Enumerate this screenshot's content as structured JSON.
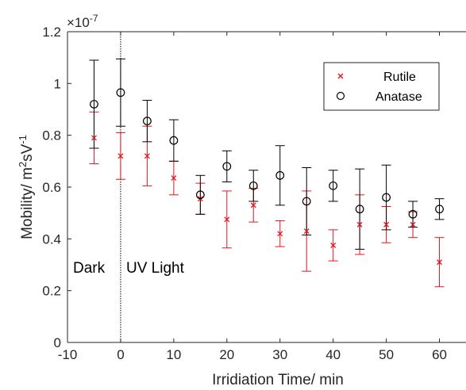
{
  "chart_data": {
    "type": "scatter",
    "xlabel": "Irridiation Time/ min",
    "ylabel_main": "Mobility/ m",
    "ylabel_sup1": "2",
    "ylabel_mid": "sV",
    "ylabel_sup2": "-1",
    "exponent_prefix": "×10",
    "exponent_power": "-7",
    "xlim": [
      -10,
      65
    ],
    "ylim": [
      0,
      1.2
    ],
    "x_ticks": [
      -10,
      0,
      10,
      20,
      30,
      40,
      50,
      60
    ],
    "y_ticks": [
      0,
      0.2,
      0.4,
      0.6,
      0.8,
      1,
      1.2
    ],
    "y_tick_labels": [
      "0",
      "0.2",
      "0.4",
      "0.6",
      "0.8",
      "1",
      "1.2"
    ],
    "divider_x": 0,
    "annotations": {
      "left": "Dark",
      "right": "UV Light"
    },
    "legend_position": "top-right",
    "series": [
      {
        "name": "Rutile",
        "marker": "x",
        "color": "#e8141b",
        "x": [
          -5,
          0,
          5,
          10,
          15,
          20,
          25,
          30,
          35,
          40,
          45,
          50,
          55,
          60
        ],
        "y": [
          0.79,
          0.72,
          0.72,
          0.635,
          0.555,
          0.475,
          0.53,
          0.42,
          0.43,
          0.375,
          0.455,
          0.455,
          0.455,
          0.31
        ],
        "yerr": [
          0.1,
          0.09,
          0.115,
          0.065,
          0.06,
          0.11,
          0.065,
          0.05,
          0.155,
          0.06,
          0.115,
          0.07,
          0.05,
          0.095
        ]
      },
      {
        "name": "Anatase",
        "marker": "o",
        "color": "#000000",
        "x": [
          -5,
          0,
          5,
          10,
          15,
          20,
          25,
          30,
          35,
          40,
          45,
          50,
          55,
          60
        ],
        "y": [
          0.92,
          0.965,
          0.855,
          0.78,
          0.57,
          0.68,
          0.605,
          0.645,
          0.545,
          0.605,
          0.515,
          0.56,
          0.495,
          0.515
        ],
        "yerr": [
          0.17,
          0.13,
          0.08,
          0.08,
          0.075,
          0.06,
          0.06,
          0.115,
          0.13,
          0.06,
          0.155,
          0.125,
          0.05,
          0.04
        ]
      }
    ]
  }
}
